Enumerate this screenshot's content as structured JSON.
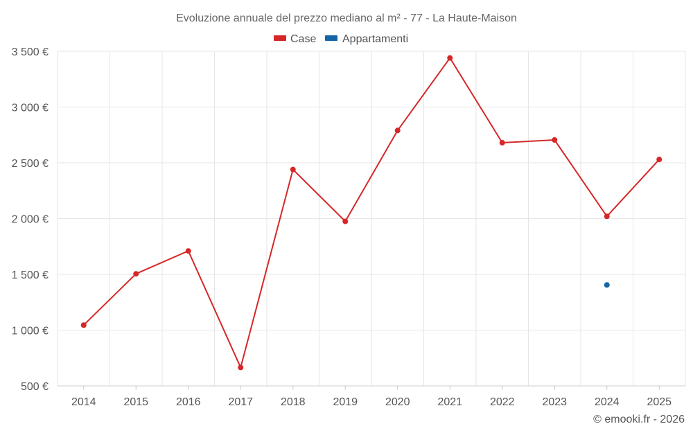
{
  "chart_data": {
    "type": "line",
    "title": "Evoluzione annuale del prezzo mediano al m² - 77 - La Haute-Maison",
    "categories": [
      "2014",
      "2015",
      "2016",
      "2017",
      "2018",
      "2019",
      "2020",
      "2021",
      "2022",
      "2023",
      "2024",
      "2025"
    ],
    "series": [
      {
        "name": "Case",
        "color": "#d62728",
        "values": [
          1045,
          1505,
          1710,
          665,
          2440,
          1975,
          2790,
          3440,
          2680,
          2705,
          2020,
          2530
        ]
      },
      {
        "name": "Appartamenti",
        "color": "#1565a7",
        "values": [
          null,
          null,
          null,
          null,
          null,
          null,
          null,
          null,
          null,
          null,
          1405,
          null
        ]
      }
    ],
    "y_ticks": [
      500,
      1000,
      1500,
      2000,
      2500,
      3000,
      3500
    ],
    "y_tick_labels": [
      "500 €",
      "1 000 €",
      "1 500 €",
      "2 000 €",
      "2 500 €",
      "3 000 €",
      "3 500 €"
    ],
    "ylim": [
      500,
      3500
    ],
    "xlabel": "",
    "ylabel": "",
    "legend_position": "top-center",
    "grid": true
  },
  "credit": "© emooki.fr - 2026"
}
